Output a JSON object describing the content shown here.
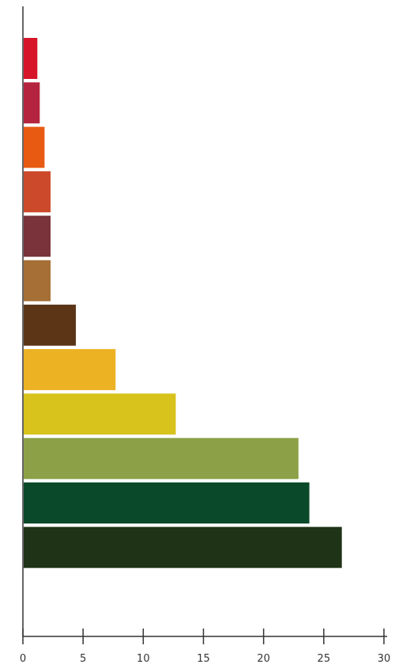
{
  "chart_data": {
    "type": "bar",
    "orientation": "horizontal",
    "title": "",
    "xlabel": "",
    "ylabel": "",
    "xlim": [
      0,
      30
    ],
    "x_ticks": [
      "0",
      "5",
      "10",
      "15",
      "20",
      "25",
      "30"
    ],
    "grid": false,
    "legend": "none",
    "values": [
      1.2,
      1.4,
      1.8,
      2.3,
      2.3,
      2.3,
      4.4,
      7.7,
      12.7,
      22.9,
      23.8,
      26.5
    ],
    "colors": [
      "#d6152a",
      "#b5243e",
      "#e85a12",
      "#cc4a2b",
      "#7a333a",
      "#a56f36",
      "#5c3517",
      "#ecb224",
      "#d8c21c",
      "#8ca147",
      "#0a4a2a",
      "#1f3316"
    ]
  }
}
